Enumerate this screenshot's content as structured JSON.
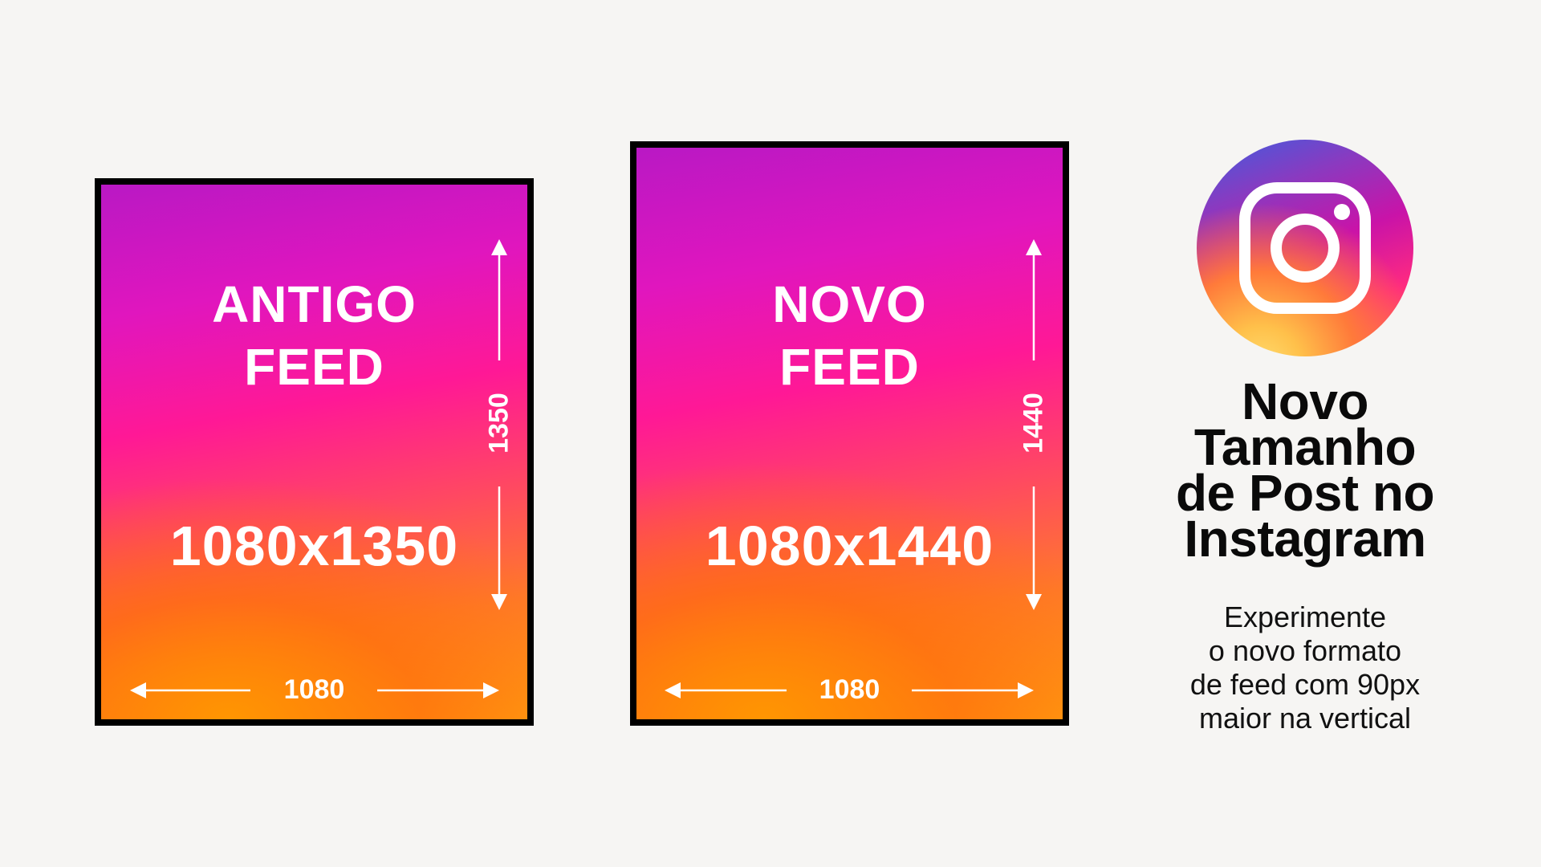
{
  "old_feed": {
    "title_line1": "ANTIGO",
    "title_line2": "FEED",
    "dimensions": "1080x1350",
    "width_label": "1080",
    "height_label": "1350"
  },
  "new_feed": {
    "title_line1": "NOVO",
    "title_line2": "FEED",
    "dimensions": "1080x1440",
    "width_label": "1080",
    "height_label": "1440"
  },
  "logo": {
    "icon": "instagram-icon"
  },
  "headline": [
    "Novo",
    "Tamanho",
    "de Post no",
    "Instagram"
  ],
  "subtitle": [
    "Experimente",
    "o novo formato",
    "de feed com 90px",
    "maior na vertical"
  ],
  "colors": {
    "background": "#f6f5f3",
    "frame": "#000000",
    "text": "#ffffff"
  }
}
